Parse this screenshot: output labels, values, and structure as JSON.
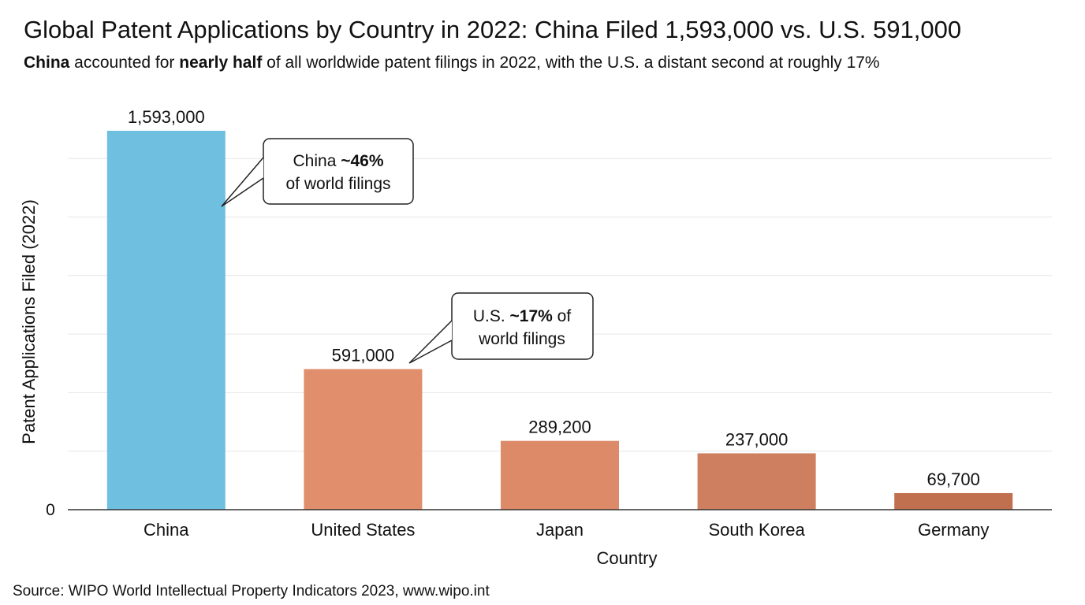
{
  "title": "Global Patent Applications by Country in 2022: China Filed 1,593,000 vs. U.S. 591,000",
  "subtitle": {
    "lead_bold": "China",
    "middle": " accounted for ",
    "mid_bold": "nearly half",
    "rest": " of all worldwide patent filings in 2022, with the U.S. a distant second at roughly 17%"
  },
  "source": "Source: WIPO World Intellectual Property Indicators 2023, www.wipo.int",
  "chart_data": {
    "type": "bar",
    "title": "Global Patent Applications by Country in 2022: China Filed 1,593,000 vs. U.S. 591,000",
    "xlabel": "Country",
    "ylabel": "Patent Applications Filed (2022)",
    "categories": [
      "China",
      "United States",
      "Japan",
      "South Korea",
      "Germany"
    ],
    "values": [
      1593000,
      591000,
      289200,
      237000,
      69700
    ],
    "value_labels": [
      "1,593,000",
      "591,000",
      "289,200",
      "237,000",
      "69,700"
    ],
    "colors": [
      "#6fbfe0",
      "#e08e6b",
      "#dc8a68",
      "#cd7f5f",
      "#c1704f"
    ],
    "ylim": [
      0,
      1593000
    ],
    "y_tick_labels": [
      "0"
    ],
    "grid": true,
    "annotations": [
      {
        "category": "China",
        "prefix": "China ",
        "bold": "~46%",
        "suffix": "",
        "line2": "of world filings"
      },
      {
        "category": "United States",
        "prefix": "U.S. ",
        "bold": "~17%",
        "suffix": " of",
        "line2": "world filings"
      }
    ]
  }
}
